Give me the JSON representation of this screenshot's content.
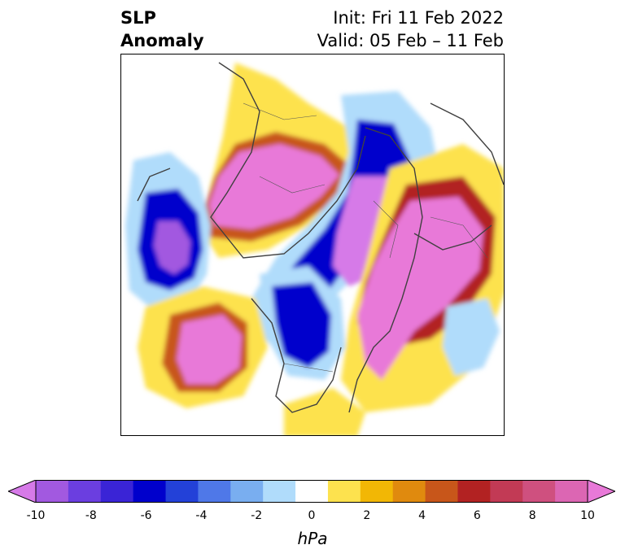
{
  "title": {
    "left_line1": "SLP",
    "left_line2": "Anomaly",
    "right_line1": "Init: Fri 11 Feb 2022",
    "right_line2": "Valid: 05 Feb – 11 Feb"
  },
  "colorbar": {
    "label": "hPa",
    "ticks": [
      "-10",
      "-8",
      "-6",
      "-4",
      "-2",
      "0",
      "2",
      "4",
      "6",
      "8",
      "10"
    ],
    "colors": [
      "#d67ae8",
      "#a259e0",
      "#6b3ee0",
      "#3a24d6",
      "#0000cc",
      "#2341d8",
      "#4f78e8",
      "#79aef0",
      "#b0dcfb",
      "#ffffff",
      "#fde24e",
      "#f2b705",
      "#e08a0e",
      "#c8561a",
      "#b22222",
      "#c23a55",
      "#cf507f",
      "#dc66b3",
      "#e879d8"
    ]
  },
  "legend_colors": {
    "low_strong": "#d56de8",
    "low": "#0000cc",
    "low_weak": "#79aef0",
    "high_weak": "#fde24e",
    "high": "#c8561a",
    "high_strong": "#e879d8"
  }
}
